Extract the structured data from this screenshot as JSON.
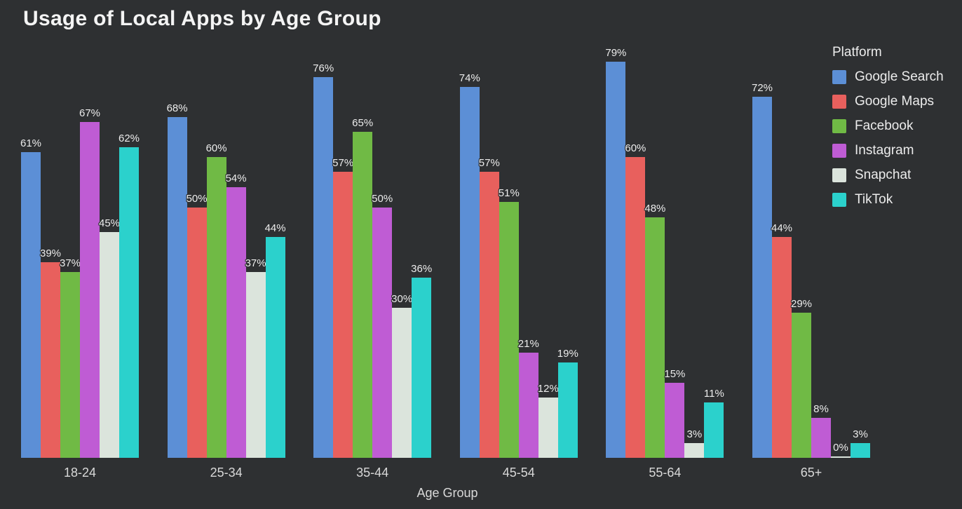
{
  "page": {
    "background_color": "#2e3032",
    "text_color": "#ececec"
  },
  "chart_data": {
    "type": "bar",
    "title": "Usage of Local Apps by Age Group",
    "xlabel": "Age Group",
    "ylabel": "",
    "legend_title": "Platform",
    "legend_position": "top-right",
    "grid": false,
    "y_axis_visible": false,
    "value_labels_visible": true,
    "value_label_suffix": "%",
    "ylim": [
      0,
      85
    ],
    "categories": [
      "18-24",
      "25-34",
      "35-44",
      "45-54",
      "55-64",
      "65+"
    ],
    "series": [
      {
        "name": "Google Search",
        "color": "#5c8fd6",
        "values": [
          61,
          68,
          76,
          74,
          79,
          72
        ]
      },
      {
        "name": "Google Maps",
        "color": "#e8605d",
        "values": [
          39,
          50,
          57,
          57,
          60,
          44
        ]
      },
      {
        "name": "Facebook",
        "color": "#70ba45",
        "values": [
          37,
          60,
          65,
          51,
          48,
          29
        ]
      },
      {
        "name": "Instagram",
        "color": "#bf5cd4",
        "values": [
          67,
          54,
          50,
          21,
          15,
          8
        ]
      },
      {
        "name": "Snapchat",
        "color": "#dbe4dc",
        "values": [
          45,
          37,
          30,
          12,
          3,
          0
        ]
      },
      {
        "name": "TikTok",
        "color": "#2bd1cc",
        "values": [
          62,
          44,
          36,
          19,
          11,
          3
        ]
      }
    ]
  }
}
